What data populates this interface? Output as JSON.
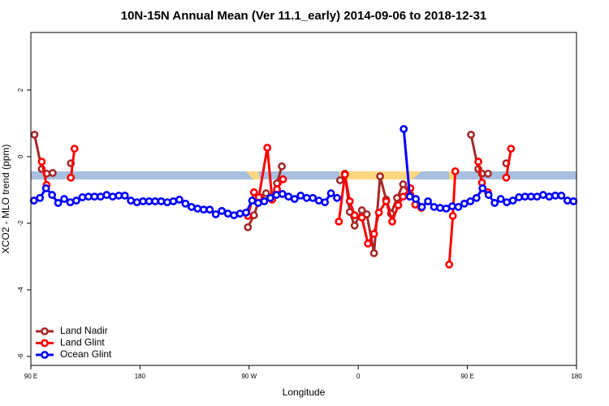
{
  "chart_data": {
    "type": "line",
    "title": "10N-15N Annual Mean (Ver 11.1_early)   2014-09-06 to 2018-12-31",
    "xlabel": "Longitude",
    "ylabel": "XCO2 - MLO trend (ppm)",
    "xlim": [
      90,
      540
    ],
    "ylim": [
      -6.27,
      3.73
    ],
    "xticks": [
      {
        "value": 90,
        "label": "90 E"
      },
      180,
      {
        "value": 270,
        "label": "90 W"
      },
      {
        "value": 360,
        "label": "0"
      },
      {
        "value": 450,
        "label": "90 E"
      },
      180
    ],
    "yticks": [
      2,
      0,
      -2,
      -4,
      -6
    ],
    "legend": "lower left",
    "series": [
      {
        "name": "Land Nadir",
        "color": "#a52a2a",
        "x": [
          93,
          99,
          103,
          108,
          null,
          123,
          null,
          269,
          274,
          279,
          284,
          289,
          293,
          297,
          null,
          345,
          349,
          353,
          357,
          363,
          367,
          373,
          378,
          383,
          387,
          392,
          397,
          403,
          null,
          453,
          459,
          462,
          467,
          null,
          482
        ],
        "values": [
          0.66,
          -0.37,
          -0.51,
          -0.49,
          null,
          -0.2,
          null,
          -2.12,
          -1.76,
          -1.22,
          -1.1,
          -1.2,
          -0.8,
          -0.29,
          null,
          -0.71,
          -0.51,
          -1.66,
          -2.07,
          -1.61,
          -1.73,
          -2.9,
          -0.59,
          -1.29,
          -1.71,
          -1.24,
          -0.83,
          -1.15,
          null,
          0.66,
          -0.37,
          -0.51,
          -0.51,
          null,
          -0.2
        ]
      },
      {
        "name": "Land Glint",
        "color": "#ff0000",
        "x": [
          99,
          103,
          null,
          123,
          126,
          null,
          269,
          274,
          278,
          285,
          289,
          293,
          298,
          null,
          344,
          349,
          353,
          357,
          363,
          368,
          373,
          377,
          383,
          388,
          393,
          397,
          403,
          407,
          412,
          null,
          435,
          438,
          440,
          null,
          459,
          462,
          467,
          null,
          482,
          486
        ],
        "values": [
          -0.15,
          -0.85,
          null,
          -0.63,
          0.24,
          null,
          -1.78,
          -1.07,
          -1.22,
          0.27,
          -1.29,
          -0.98,
          -0.68,
          null,
          -1.95,
          -0.54,
          -1.34,
          -1.76,
          -1.83,
          -2.61,
          -2.32,
          -1.68,
          -1.34,
          -1.95,
          -1.46,
          -1.2,
          -0.95,
          -1.44,
          -1.54,
          null,
          -3.24,
          -1.78,
          -0.44,
          null,
          -0.15,
          -0.78,
          -1.07,
          null,
          -0.63,
          0.24
        ]
      },
      {
        "name": "Ocean Glint",
        "color": "#0000ff",
        "x": [
          92.5,
          97.5,
          102.5,
          107.5,
          112.5,
          117.5,
          122.5,
          127.5,
          132.5,
          137.5,
          142.5,
          147.5,
          152.5,
          157.5,
          162.5,
          167.5,
          172.5,
          177.5,
          182.5,
          187.5,
          192.5,
          197.5,
          202.5,
          207.5,
          212.5,
          217.5,
          222.5,
          227.5,
          232.5,
          237.5,
          242.5,
          247.5,
          252.5,
          257.5,
          262.5,
          267.5,
          272.5,
          277.5,
          282.5,
          287.5,
          292.5,
          297.5,
          302.5,
          307.5,
          312.5,
          317.5,
          322.5,
          327.5,
          332.5,
          337.5,
          342.5,
          null,
          397.5,
          402.5,
          407.5,
          412.5,
          417.5,
          422.5,
          427.5,
          432.5,
          437.5,
          442.5,
          447.5,
          452.5,
          457.5,
          462.5,
          467.5,
          472.5,
          477.5,
          482.5,
          487.5,
          492.5,
          497.5,
          502.5,
          507.5,
          512.5,
          517.5,
          522.5,
          527.5,
          532.5,
          537.5
        ],
        "values": [
          -1.32,
          -1.24,
          -0.95,
          -1.15,
          -1.39,
          -1.27,
          -1.37,
          -1.32,
          -1.22,
          -1.2,
          -1.2,
          -1.2,
          -1.15,
          -1.2,
          -1.17,
          -1.17,
          -1.32,
          -1.37,
          -1.34,
          -1.34,
          -1.34,
          -1.34,
          -1.37,
          -1.34,
          -1.29,
          -1.41,
          -1.51,
          -1.56,
          -1.59,
          -1.59,
          -1.73,
          -1.63,
          -1.71,
          -1.76,
          -1.71,
          -1.68,
          -1.32,
          -1.39,
          -1.34,
          -1.24,
          -1.15,
          -1.12,
          -1.2,
          -1.27,
          -1.17,
          -1.24,
          -1.24,
          -1.32,
          -1.37,
          -1.1,
          -1.24,
          null,
          0.83,
          -1.2,
          -1.27,
          -1.51,
          -1.34,
          -1.51,
          -1.54,
          -1.56,
          -1.49,
          -1.51,
          -1.41,
          -1.34,
          -1.24,
          -0.95,
          -1.15,
          -1.39,
          -1.27,
          -1.37,
          -1.32,
          -1.22,
          -1.2,
          -1.2,
          -1.2,
          -1.15,
          -1.2,
          -1.17,
          -1.17,
          -1.32,
          -1.34
        ]
      }
    ]
  }
}
